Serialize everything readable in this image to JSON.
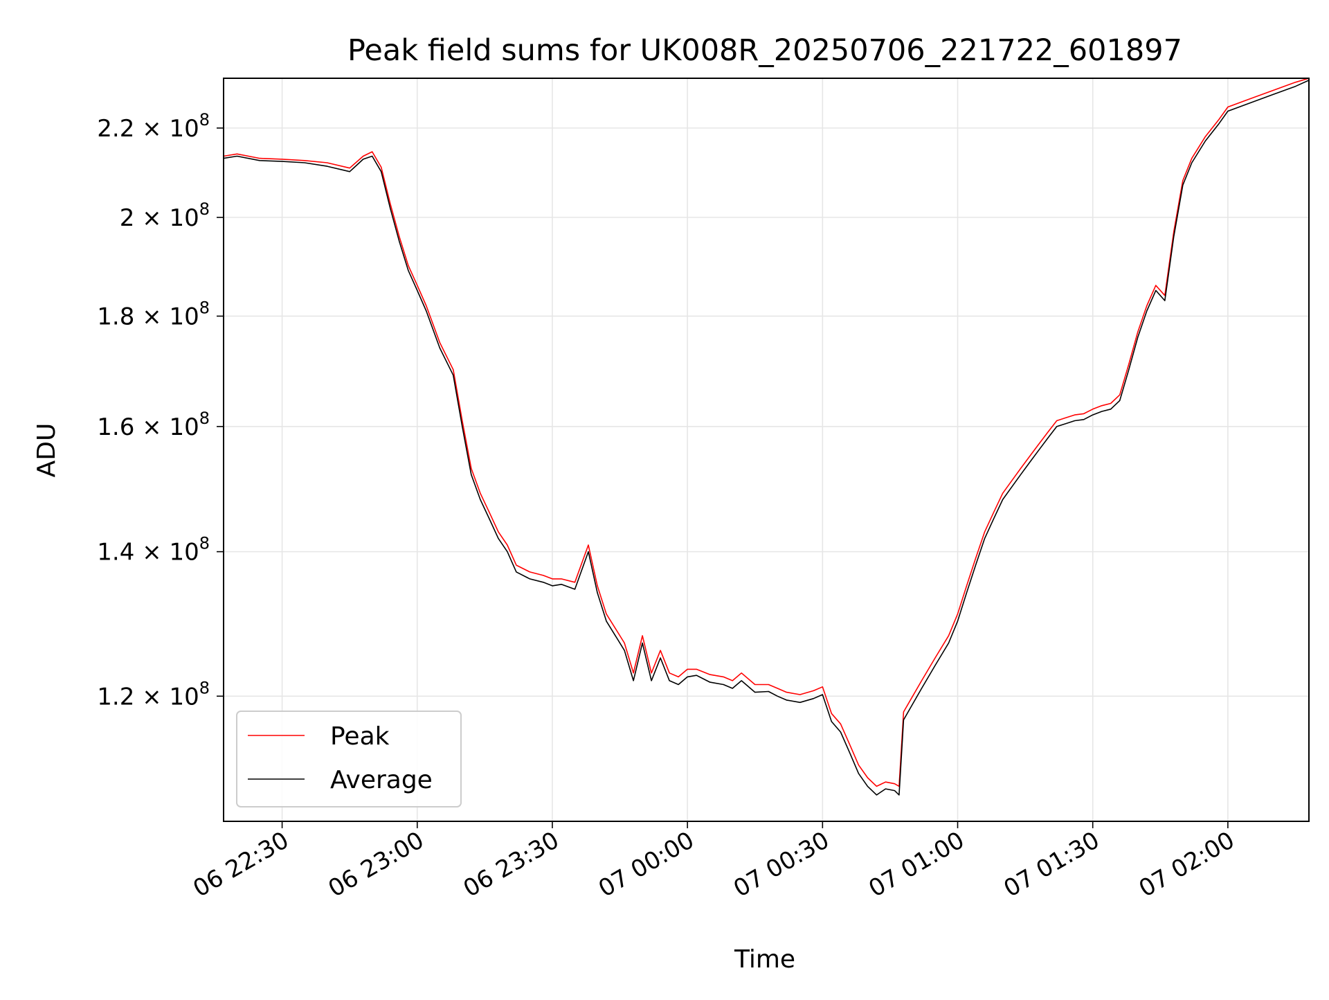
{
  "chart_data": {
    "type": "line",
    "title": "Peak field sums for UK008R_20250706_221722_601897",
    "xlabel": "Time",
    "ylabel": "ADU",
    "x_unit": "time (day hh:mm)",
    "xlim": [
      "06 22:17",
      "07 02:18"
    ],
    "ylim": [
      105000000,
      232000000
    ],
    "y_scale": "log",
    "x_ticks": [
      "06 22:30",
      "06 23:00",
      "06 23:30",
      "07 00:00",
      "07 00:30",
      "07 01:00",
      "07 01:30",
      "07 02:00"
    ],
    "y_ticks": [
      {
        "value": 120000000,
        "mantissa": "1.2",
        "base": "10",
        "exp": "8"
      },
      {
        "value": 140000000,
        "mantissa": "1.4",
        "base": "10",
        "exp": "8"
      },
      {
        "value": 160000000,
        "mantissa": "1.6",
        "base": "10",
        "exp": "8"
      },
      {
        "value": 180000000,
        "mantissa": "1.8",
        "base": "10",
        "exp": "8"
      },
      {
        "value": 200000000,
        "mantissa": "2",
        "base": "10",
        "exp": "8"
      },
      {
        "value": 220000000,
        "mantissa": "2.2",
        "base": "10",
        "exp": "8"
      }
    ],
    "grid": true,
    "legend_position": "lower-left",
    "series": [
      {
        "name": "Average",
        "color": "#000000",
        "x": [
          "06 22:17",
          "06 22:20",
          "06 22:25",
          "06 22:30",
          "06 22:35",
          "06 22:40",
          "06 22:45",
          "06 22:48",
          "06 22:50",
          "06 22:52",
          "06 22:54",
          "06 22:56",
          "06 22:58",
          "06 23:00",
          "06 23:02",
          "06 23:05",
          "06 23:08",
          "06 23:10",
          "06 23:12",
          "06 23:14",
          "06 23:16",
          "06 23:18",
          "06 23:20",
          "06 23:22",
          "06 23:25",
          "06 23:28",
          "06 23:30",
          "06 23:32",
          "06 23:35",
          "06 23:38",
          "06 23:40",
          "06 23:42",
          "06 23:44",
          "06 23:46",
          "06 23:48",
          "06 23:50",
          "06 23:52",
          "06 23:54",
          "06 23:56",
          "06 23:58",
          "07 00:00",
          "07 00:02",
          "07 00:05",
          "07 00:08",
          "07 00:10",
          "07 00:12",
          "07 00:15",
          "07 00:18",
          "07 00:20",
          "07 00:22",
          "07 00:25",
          "07 00:28",
          "07 00:30",
          "07 00:32",
          "07 00:34",
          "07 00:36",
          "07 00:38",
          "07 00:40",
          "07 00:42",
          "07 00:44",
          "07 00:46",
          "07 00:47",
          "07 00:48",
          "07 00:50",
          "07 00:52",
          "07 00:55",
          "07 00:58",
          "07 01:00",
          "07 01:02",
          "07 01:04",
          "07 01:06",
          "07 01:08",
          "07 01:10",
          "07 01:12",
          "07 01:14",
          "07 01:16",
          "07 01:18",
          "07 01:20",
          "07 01:22",
          "07 01:24",
          "07 01:26",
          "07 01:28",
          "07 01:30",
          "07 01:32",
          "07 01:34",
          "07 01:36",
          "07 01:38",
          "07 01:40",
          "07 01:42",
          "07 01:44",
          "07 01:46",
          "07 01:48",
          "07 01:50",
          "07 01:52",
          "07 01:55",
          "07 01:58",
          "07 02:00",
          "07 02:05",
          "07 02:10",
          "07 02:15",
          "07 02:18"
        ],
        "y": [
          213000000,
          213500000,
          212500000,
          212300000,
          212000000,
          211200000,
          210000000,
          212800000,
          213500000,
          210000000,
          202000000,
          195000000,
          189000000,
          185000000,
          181000000,
          174000000,
          169000000,
          160000000,
          152000000,
          148000000,
          145000000,
          142000000,
          140000000,
          137000000,
          136000000,
          135500000,
          135000000,
          135200000,
          134500000,
          140000000,
          134000000,
          130000000,
          128000000,
          126000000,
          122000000,
          127000000,
          122000000,
          125000000,
          122000000,
          121500000,
          122500000,
          122700000,
          121800000,
          121500000,
          121000000,
          122000000,
          120500000,
          120600000,
          120000000,
          119500000,
          119200000,
          119700000,
          120200000,
          116800000,
          115500000,
          113000000,
          110500000,
          109000000,
          108000000,
          108700000,
          108500000,
          108000000,
          117000000,
          119000000,
          121000000,
          124000000,
          127000000,
          130000000,
          134000000,
          138000000,
          142000000,
          145000000,
          148000000,
          150000000,
          152000000,
          154000000,
          156000000,
          158000000,
          160000000,
          160500000,
          161000000,
          161200000,
          162000000,
          162600000,
          163000000,
          164500000,
          170000000,
          176000000,
          181000000,
          185000000,
          183000000,
          196000000,
          207000000,
          212000000,
          217000000,
          221000000,
          224000000,
          226000000,
          228000000,
          230000000,
          231500000
        ]
      },
      {
        "name": "Peak",
        "color": "#ff0000",
        "x": [
          "06 22:17",
          "06 22:20",
          "06 22:25",
          "06 22:30",
          "06 22:35",
          "06 22:40",
          "06 22:45",
          "06 22:48",
          "06 22:50",
          "06 22:52",
          "06 22:54",
          "06 22:56",
          "06 22:58",
          "06 23:00",
          "06 23:02",
          "06 23:05",
          "06 23:08",
          "06 23:10",
          "06 23:12",
          "06 23:14",
          "06 23:16",
          "06 23:18",
          "06 23:20",
          "06 23:22",
          "06 23:25",
          "06 23:28",
          "06 23:30",
          "06 23:32",
          "06 23:35",
          "06 23:38",
          "06 23:40",
          "06 23:42",
          "06 23:44",
          "06 23:46",
          "06 23:48",
          "06 23:50",
          "06 23:52",
          "06 23:54",
          "06 23:56",
          "06 23:58",
          "07 00:00",
          "07 00:02",
          "07 00:05",
          "07 00:08",
          "07 00:10",
          "07 00:12",
          "07 00:15",
          "07 00:18",
          "07 00:20",
          "07 00:22",
          "07 00:25",
          "07 00:28",
          "07 00:30",
          "07 00:32",
          "07 00:34",
          "07 00:36",
          "07 00:38",
          "07 00:40",
          "07 00:42",
          "07 00:44",
          "07 00:46",
          "07 00:47",
          "07 00:48",
          "07 00:50",
          "07 00:52",
          "07 00:55",
          "07 00:58",
          "07 01:00",
          "07 01:02",
          "07 01:04",
          "07 01:06",
          "07 01:08",
          "07 01:10",
          "07 01:12",
          "07 01:14",
          "07 01:16",
          "07 01:18",
          "07 01:20",
          "07 01:22",
          "07 01:24",
          "07 01:26",
          "07 01:28",
          "07 01:30",
          "07 01:32",
          "07 01:34",
          "07 01:36",
          "07 01:38",
          "07 01:40",
          "07 01:42",
          "07 01:44",
          "07 01:46",
          "07 01:48",
          "07 01:50",
          "07 01:52",
          "07 01:55",
          "07 01:58",
          "07 02:00",
          "07 02:05",
          "07 02:10",
          "07 02:15",
          "07 02:18"
        ],
        "y": [
          213500000,
          214000000,
          213000000,
          212800000,
          212500000,
          212000000,
          210800000,
          213500000,
          214500000,
          211000000,
          203000000,
          196000000,
          190000000,
          186000000,
          182000000,
          175000000,
          170000000,
          161000000,
          153000000,
          149000000,
          146000000,
          143000000,
          141000000,
          138000000,
          137000000,
          136500000,
          136000000,
          136000000,
          135500000,
          141000000,
          135000000,
          131000000,
          129000000,
          127000000,
          123000000,
          128000000,
          123000000,
          126000000,
          123000000,
          122500000,
          123500000,
          123500000,
          122800000,
          122500000,
          122000000,
          123000000,
          121500000,
          121500000,
          121000000,
          120500000,
          120200000,
          120700000,
          121200000,
          117800000,
          116500000,
          114000000,
          111500000,
          110000000,
          109000000,
          109500000,
          109300000,
          109000000,
          118000000,
          120000000,
          122000000,
          125000000,
          128000000,
          131000000,
          135000000,
          139000000,
          143000000,
          146000000,
          149000000,
          151000000,
          153000000,
          155000000,
          157000000,
          159000000,
          161000000,
          161500000,
          162000000,
          162200000,
          163000000,
          163600000,
          164000000,
          165500000,
          171000000,
          177000000,
          182000000,
          186000000,
          184000000,
          197000000,
          208000000,
          213000000,
          218000000,
          222000000,
          225000000,
          227000000,
          229000000,
          231000000,
          232000000
        ]
      }
    ]
  }
}
